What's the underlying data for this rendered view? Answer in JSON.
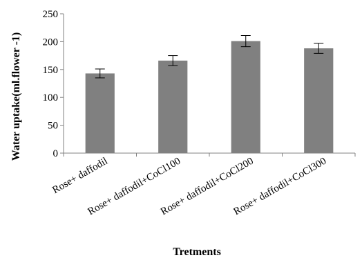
{
  "chart_data": {
    "type": "bar",
    "xlabel": "Tretments",
    "ylabel": "Water uptake(ml.flower -1)",
    "categories": [
      "Rose+ daffodil",
      "Rose+ daffodil+CoCl100",
      "Rose+ daffodil+CoCl200",
      "Rose+ daffodil+CoCl300"
    ],
    "series": [
      {
        "values": [
          143,
          166,
          201,
          188
        ],
        "errors": [
          8,
          9,
          10,
          9
        ]
      }
    ],
    "ylim": [
      0,
      250
    ],
    "yticks": [
      0,
      50,
      100,
      150,
      200,
      250
    ],
    "grid": false,
    "legend": "none",
    "bar_color": "#808080",
    "axis_color": "#808080"
  }
}
